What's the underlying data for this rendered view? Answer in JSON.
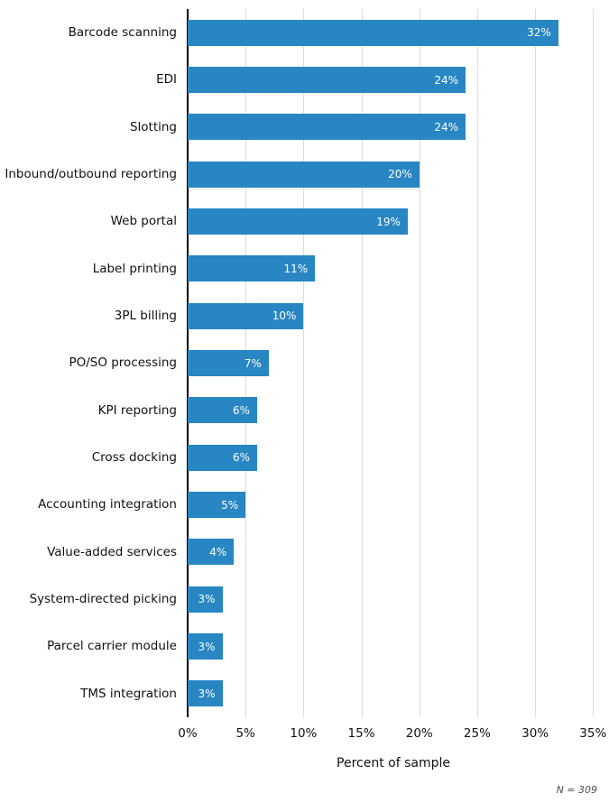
{
  "chart_data": {
    "type": "bar",
    "orientation": "horizontal",
    "title": "",
    "xlabel": "Percent of sample",
    "ylabel": "",
    "categories": [
      "Barcode scanning",
      "EDI",
      "Slotting",
      "Inbound/outbound reporting",
      "Web portal",
      "Label printing",
      "3PL billing",
      "PO/SO processing",
      "KPI reporting",
      "Cross docking",
      "Accounting integration",
      "Value-added services",
      "System-directed picking",
      "Parcel carrier module",
      "TMS integration"
    ],
    "values": [
      32,
      24,
      24,
      20,
      19,
      11,
      10,
      7,
      6,
      6,
      5,
      4,
      3,
      3,
      3
    ],
    "value_labels": [
      "32%",
      "24%",
      "24%",
      "20%",
      "19%",
      "11%",
      "10%",
      "7%",
      "6%",
      "6%",
      "5%",
      "4%",
      "3%",
      "3%",
      "3%"
    ],
    "xlim": [
      0,
      35.6
    ],
    "xticks": [
      0,
      5,
      10,
      15,
      20,
      25,
      30,
      35
    ],
    "xtick_labels": [
      "0%",
      "5%",
      "10%",
      "15%",
      "20%",
      "25%",
      "30%",
      "35%"
    ],
    "grid": "vertical",
    "legend": "none",
    "bar_color": "#2886c3",
    "value_label_color": "#ffffff",
    "gridline_color": "#dcdcdc",
    "axis_line_color": "#000000"
  },
  "footnote": "N = 309"
}
